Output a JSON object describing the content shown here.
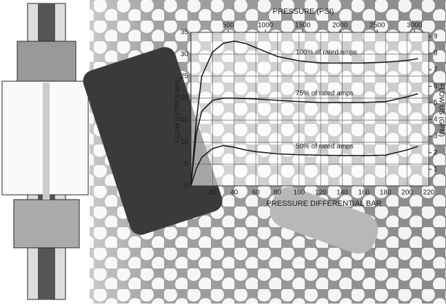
{
  "chart_data": {
    "type": "line",
    "title": "PRESSURE (PSI)",
    "x_label": "PRESSURE DIFFERENTIAL BAR",
    "y_label": "FLOW (LITRES/MIN)",
    "y2_label": "FLOW US (GPM)",
    "x": [
      0,
      5,
      10,
      20,
      30,
      40,
      50,
      60,
      80,
      100,
      120,
      140,
      160,
      180,
      200,
      210
    ],
    "series": [
      {
        "name": "100% of rated amps",
        "color": "#1a1a1a",
        "values": [
          0,
          15,
          25,
          30.5,
          32.5,
          33,
          32.5,
          31.5,
          29.5,
          28.5,
          28,
          28,
          28,
          28.2,
          28.6,
          29
        ]
      },
      {
        "name": "75% of rated amps",
        "color": "#1a1a1a",
        "values": [
          0,
          12,
          17,
          19.5,
          20,
          20,
          19.9,
          19.8,
          19.5,
          19.2,
          19,
          19,
          19,
          19.2,
          20.3,
          21
        ]
      },
      {
        "name": "50% of rated amps",
        "color": "#1a1a1a",
        "values": [
          0,
          4,
          6.5,
          8.5,
          9.2,
          8.8,
          8.2,
          7.8,
          7.3,
          7.1,
          7,
          6.9,
          6.9,
          7,
          8.2,
          9
        ]
      }
    ],
    "xlim": [
      0,
      220
    ],
    "xticks": [
      20,
      40,
      60,
      80,
      100,
      120,
      140,
      160,
      180,
      200,
      220
    ],
    "x2lim": [
      0,
      3191
    ],
    "x2ticks": [
      500,
      1000,
      1500,
      2000,
      2500,
      3000
    ],
    "ylim": [
      0,
      35
    ],
    "yticks": [
      0,
      5,
      10,
      15,
      20,
      25,
      30,
      35
    ],
    "y2lim": [
      0,
      9.25
    ],
    "y2ticks": [
      1,
      2,
      3,
      4,
      5,
      6,
      7,
      8,
      9
    ],
    "grid": true
  }
}
